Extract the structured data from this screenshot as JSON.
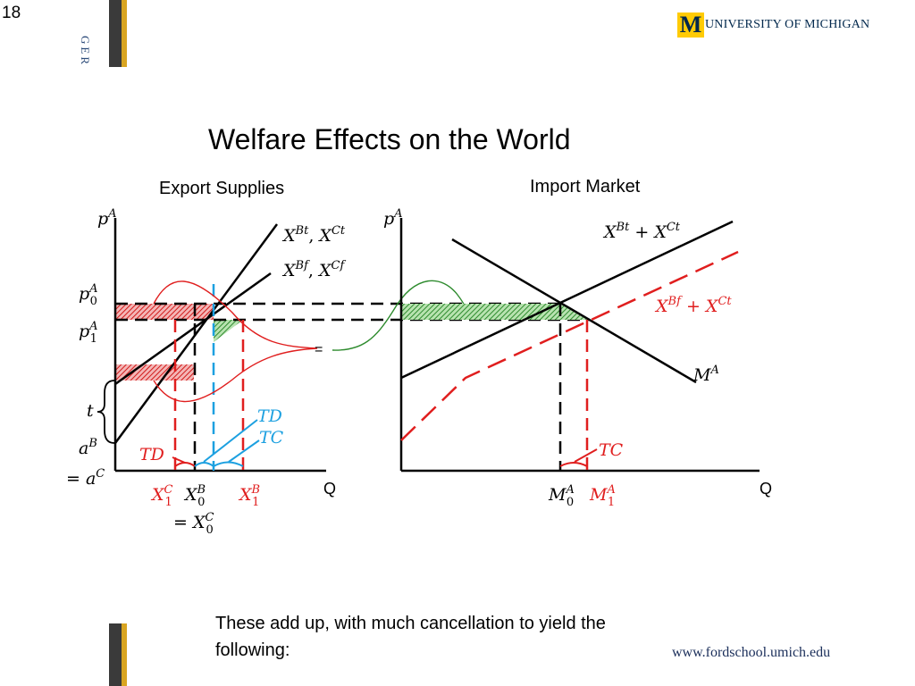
{
  "slide_number": "18",
  "side_label": "GER",
  "logo": {
    "letter": "M",
    "text": "UNIVERSITY OF MICHIGAN"
  },
  "title": "Welfare Effects on the World",
  "left_panel": {
    "subtitle": "Export Supplies",
    "y_axis": "p^A",
    "x_axis": "Q",
    "curve_trade": "X^{Bt}, X^{Ct}",
    "curve_free": "X^{Bf}, X^{Cf}",
    "p0": "p_0^A",
    "p1": "p_1^A",
    "tariff": "t",
    "intercept": "a^B = a^C",
    "td_red": "TD",
    "td_blue": "TD",
    "tc_blue": "TC",
    "x1c": "X_1^C",
    "x0b": "X_0^B = X_0^C",
    "x1b": "X_1^B",
    "equals": "="
  },
  "right_panel": {
    "subtitle": "Import Market",
    "y_axis": "p^A",
    "x_axis": "Q",
    "supply_trade": "X^{Bt} + X^{Ct}",
    "supply_free": "X^{Bf} + X^{Ct}",
    "demand": "M^A",
    "tc_red": "TC",
    "m0": "M_0^A",
    "m1": "M_1^A"
  },
  "caption": "These add up, with much cancellation to yield the following:",
  "url": "www.fordschool.umich.edu"
}
